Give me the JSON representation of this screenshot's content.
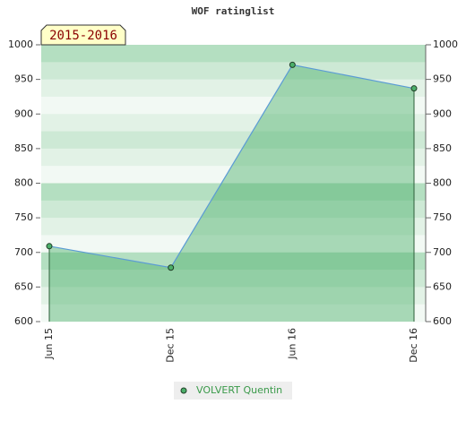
{
  "chart_data": {
    "type": "area",
    "title": "WOF ratinglist",
    "subtitle": "2015-2016",
    "categories": [
      "Jun 15",
      "Dec 15",
      "Jun 16",
      "Dec 16"
    ],
    "series": [
      {
        "name": "VOLVERT Quentin",
        "color": "#4caf6a",
        "line_color": "#5b9bd5",
        "values": [
          709,
          678,
          971,
          937
        ]
      }
    ],
    "ylim": [
      600,
      1000
    ],
    "yticks": [
      600,
      650,
      700,
      750,
      800,
      850,
      900,
      950,
      1000
    ],
    "y2lim": [
      600,
      1000
    ],
    "y2ticks": [
      600,
      650,
      700,
      750,
      800,
      850,
      900,
      950,
      1000
    ]
  }
}
